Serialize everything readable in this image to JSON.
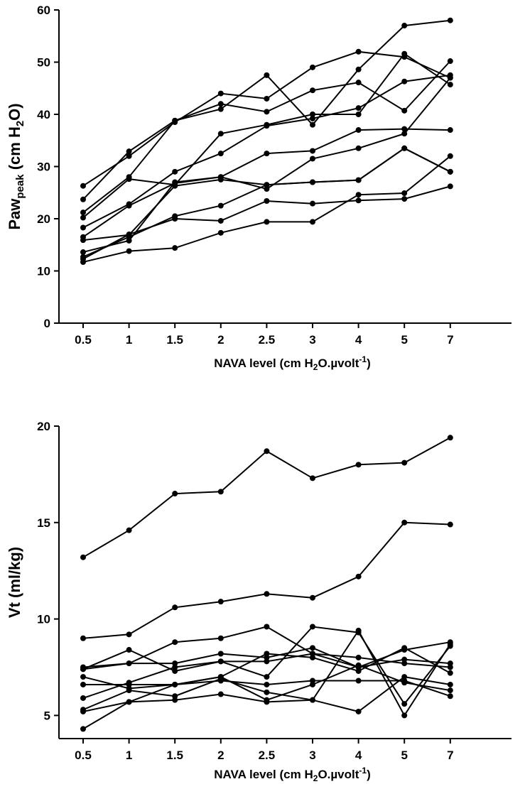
{
  "chart_data": [
    {
      "type": "line",
      "xlabel": "NAVA level (cm H",
      "xlabel_sub": "2",
      "xlabel_rest": "O.µvolt",
      "xlabel_sup": "-1",
      "xlabel_end": ")",
      "ylabel": "Paw",
      "ylabel_sub": "peak",
      "ylabel_rest": " (cm H",
      "ylabel_sub2": "2",
      "ylabel_end": "O)",
      "categories": [
        "0.5",
        "1",
        "1.5",
        "2",
        "2.5",
        "3",
        "4",
        "5",
        "7"
      ],
      "ylim": [
        0,
        60
      ],
      "yticks": [
        0,
        10,
        20,
        30,
        40,
        50,
        60
      ],
      "ytick_labels": [
        "0",
        "10",
        "20",
        "30",
        "40",
        "50",
        "60"
      ],
      "series": [
        {
          "values": [
            26.3,
            32.0,
            38.5,
            44.0,
            43.0,
            49.0,
            52.0,
            51.0,
            47.0
          ]
        },
        {
          "values": [
            23.7,
            32.9,
            38.8,
            41.0,
            47.5,
            38.0,
            48.6,
            57.0,
            58.0
          ]
        },
        {
          "values": [
            21.2,
            28.0,
            38.8,
            42.0,
            40.5,
            44.6,
            46.1,
            40.7,
            50.2
          ]
        },
        {
          "values": [
            20.2,
            27.6,
            26.5,
            36.3,
            38.0,
            40.0,
            40.0,
            51.6,
            45.7
          ]
        },
        {
          "values": [
            18.3,
            22.8,
            29.0,
            32.5,
            37.8,
            39.2,
            41.2,
            46.3,
            47.5
          ]
        },
        {
          "values": [
            16.5,
            22.5,
            26.8,
            28.0,
            32.5,
            33.0,
            37.0,
            37.2,
            37.0
          ]
        },
        {
          "values": [
            15.9,
            16.9,
            26.3,
            27.5,
            26.5,
            27.0,
            27.4,
            33.5,
            29.0
          ]
        },
        {
          "values": [
            13.6,
            15.8,
            27.0,
            28.0,
            25.7,
            31.5,
            33.5,
            36.3,
            47.0
          ]
        },
        {
          "values": [
            12.7,
            16.5,
            20.5,
            22.5,
            26.5,
            27.0,
            27.4,
            33.5,
            29.0
          ]
        },
        {
          "values": [
            12.3,
            17.0,
            20.0,
            19.6,
            23.4,
            22.9,
            23.5,
            23.8,
            26.2
          ]
        },
        {
          "values": [
            11.7,
            13.8,
            14.4,
            17.3,
            19.4,
            19.4,
            24.6,
            24.9,
            32.0
          ]
        }
      ]
    },
    {
      "type": "line",
      "xlabel": "NAVA level (cm H",
      "xlabel_sub": "2",
      "xlabel_rest": "O.µvolt",
      "xlabel_sup": "-1",
      "xlabel_end": ")",
      "ylabel": "Vt (ml/kg)",
      "categories": [
        "0.5",
        "1",
        "1.5",
        "2",
        "2.5",
        "3",
        "4",
        "5",
        "7"
      ],
      "ylim": [
        3.8,
        20
      ],
      "yticks": [
        5,
        10,
        15,
        20
      ],
      "ytick_labels": [
        "5",
        "10",
        "15",
        "20"
      ],
      "series": [
        {
          "values": [
            13.2,
            14.6,
            16.5,
            16.6,
            18.7,
            17.3,
            18.0,
            18.1,
            19.4
          ]
        },
        {
          "values": [
            9.0,
            9.2,
            10.6,
            10.9,
            11.3,
            11.1,
            12.2,
            15.0,
            14.9
          ]
        },
        {
          "values": [
            7.5,
            7.7,
            8.8,
            9.0,
            9.6,
            8.2,
            8.0,
            7.7,
            7.5
          ]
        },
        {
          "values": [
            7.4,
            8.4,
            7.3,
            7.8,
            7.8,
            8.2,
            7.5,
            8.4,
            8.8
          ]
        },
        {
          "values": [
            7.4,
            7.7,
            7.7,
            8.2,
            8.0,
            8.5,
            7.5,
            7.9,
            7.7
          ]
        },
        {
          "values": [
            7.0,
            6.4,
            6.6,
            7.0,
            8.2,
            8.0,
            7.3,
            8.5,
            7.2
          ]
        },
        {
          "values": [
            6.6,
            6.6,
            6.6,
            6.8,
            6.6,
            6.8,
            6.8,
            6.8,
            6.0
          ]
        },
        {
          "values": [
            5.9,
            6.7,
            7.5,
            7.8,
            7.0,
            9.6,
            9.3,
            5.6,
            8.6
          ]
        },
        {
          "values": [
            5.3,
            6.3,
            6.0,
            6.9,
            6.2,
            5.8,
            9.4,
            5.0,
            8.7
          ]
        },
        {
          "values": [
            5.2,
            5.7,
            6.6,
            7.0,
            5.8,
            6.6,
            7.6,
            6.7,
            6.3
          ]
        },
        {
          "values": [
            4.3,
            5.7,
            5.8,
            6.1,
            5.7,
            5.8,
            5.2,
            7.0,
            6.6
          ]
        }
      ]
    }
  ]
}
